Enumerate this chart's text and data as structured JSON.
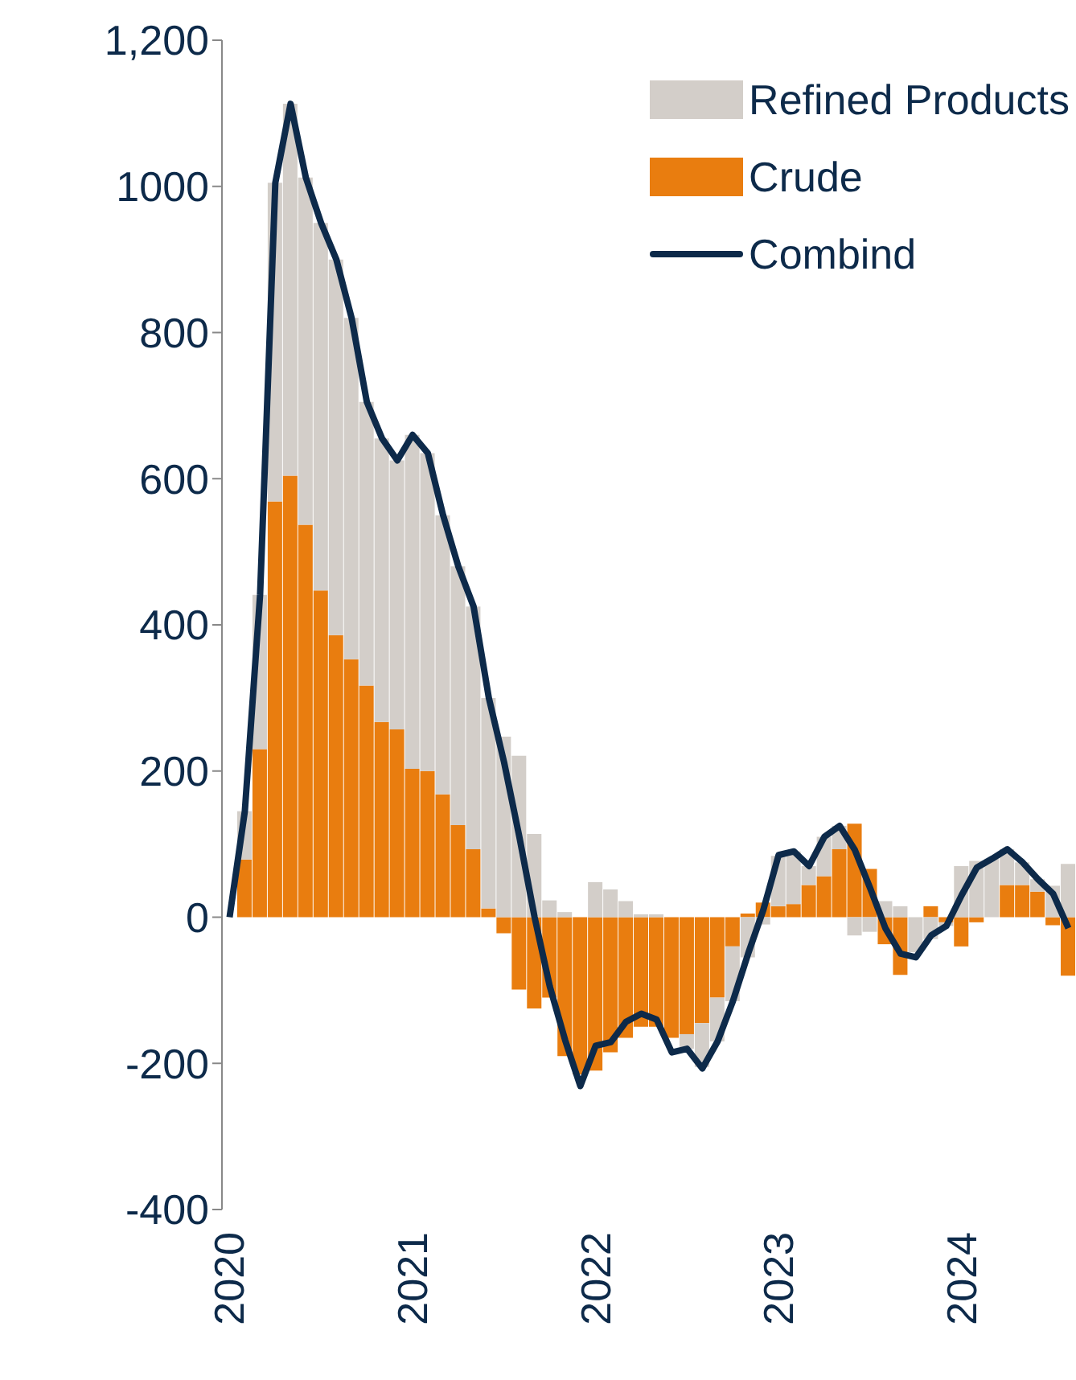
{
  "chart_data": {
    "type": "bar",
    "stacked": true,
    "categories": [
      "2020",
      null,
      null,
      null,
      null,
      null,
      null,
      null,
      null,
      null,
      null,
      null,
      "2021",
      null,
      null,
      null,
      null,
      null,
      null,
      null,
      null,
      null,
      null,
      null,
      "2022",
      null,
      null,
      null,
      null,
      null,
      null,
      null,
      null,
      null,
      null,
      null,
      "2023",
      null,
      null,
      null,
      null,
      null,
      null,
      null,
      null,
      null,
      null,
      null,
      "2024",
      null,
      null,
      null,
      null,
      null,
      null,
      null
    ],
    "series": [
      {
        "name": "Crude",
        "color": "#e97d0f",
        "values": [
          0,
          79,
          230,
          569,
          604,
          537,
          447,
          386,
          353,
          317,
          267,
          257,
          203,
          200,
          168,
          126,
          93,
          12,
          -22,
          -99,
          -125,
          -110,
          -190,
          -215,
          -210,
          -185,
          -165,
          -150,
          -150,
          -165,
          -160,
          -145,
          -110,
          -40,
          5,
          20,
          15,
          18,
          44,
          56,
          93,
          128,
          66,
          -37,
          -79,
          0,
          15,
          -7,
          -40,
          -7,
          0,
          44,
          44,
          35,
          -11,
          -80
        ]
      },
      {
        "name": "Refined Products",
        "color": "#d3cec9",
        "values": [
          0,
          66,
          211,
          436,
          509,
          475,
          503,
          514,
          467,
          388,
          388,
          368,
          457,
          435,
          382,
          354,
          332,
          288,
          247,
          221,
          114,
          23,
          7,
          0,
          48,
          38,
          22,
          4,
          4,
          0,
          -20,
          -60,
          -60,
          -75,
          -55,
          -10,
          69,
          72,
          26,
          54,
          32,
          -25,
          -20,
          22,
          15,
          -48,
          -30,
          -5,
          70,
          77,
          80,
          49,
          31,
          17,
          43,
          73
        ]
      },
      {
        "name": "Combind",
        "type": "line",
        "color": "#0d2a4a",
        "values": [
          0,
          145,
          441,
          1005,
          1113,
          1012,
          950,
          900,
          820,
          705,
          655,
          625,
          660,
          635,
          550,
          480,
          425,
          300,
          212,
          110,
          0,
          -95,
          -168,
          -231,
          -176,
          -171,
          -143,
          -132,
          -140,
          -185,
          -180,
          -207,
          -170,
          -115,
          -50,
          10,
          85,
          90,
          70,
          110,
          125,
          92,
          40,
          -15,
          -50,
          -55,
          -25,
          -12,
          30,
          68,
          80,
          93,
          75,
          52,
          32,
          -15
        ]
      }
    ],
    "ylim": [
      -400,
      1200
    ],
    "yticks": [
      -400,
      -200,
      0,
      200,
      400,
      600,
      800,
      1000,
      {
        "value": 1200,
        "label": "1,200"
      }
    ],
    "legend": "top right",
    "grid": false,
    "marker": "none",
    "line_style": "solid"
  }
}
